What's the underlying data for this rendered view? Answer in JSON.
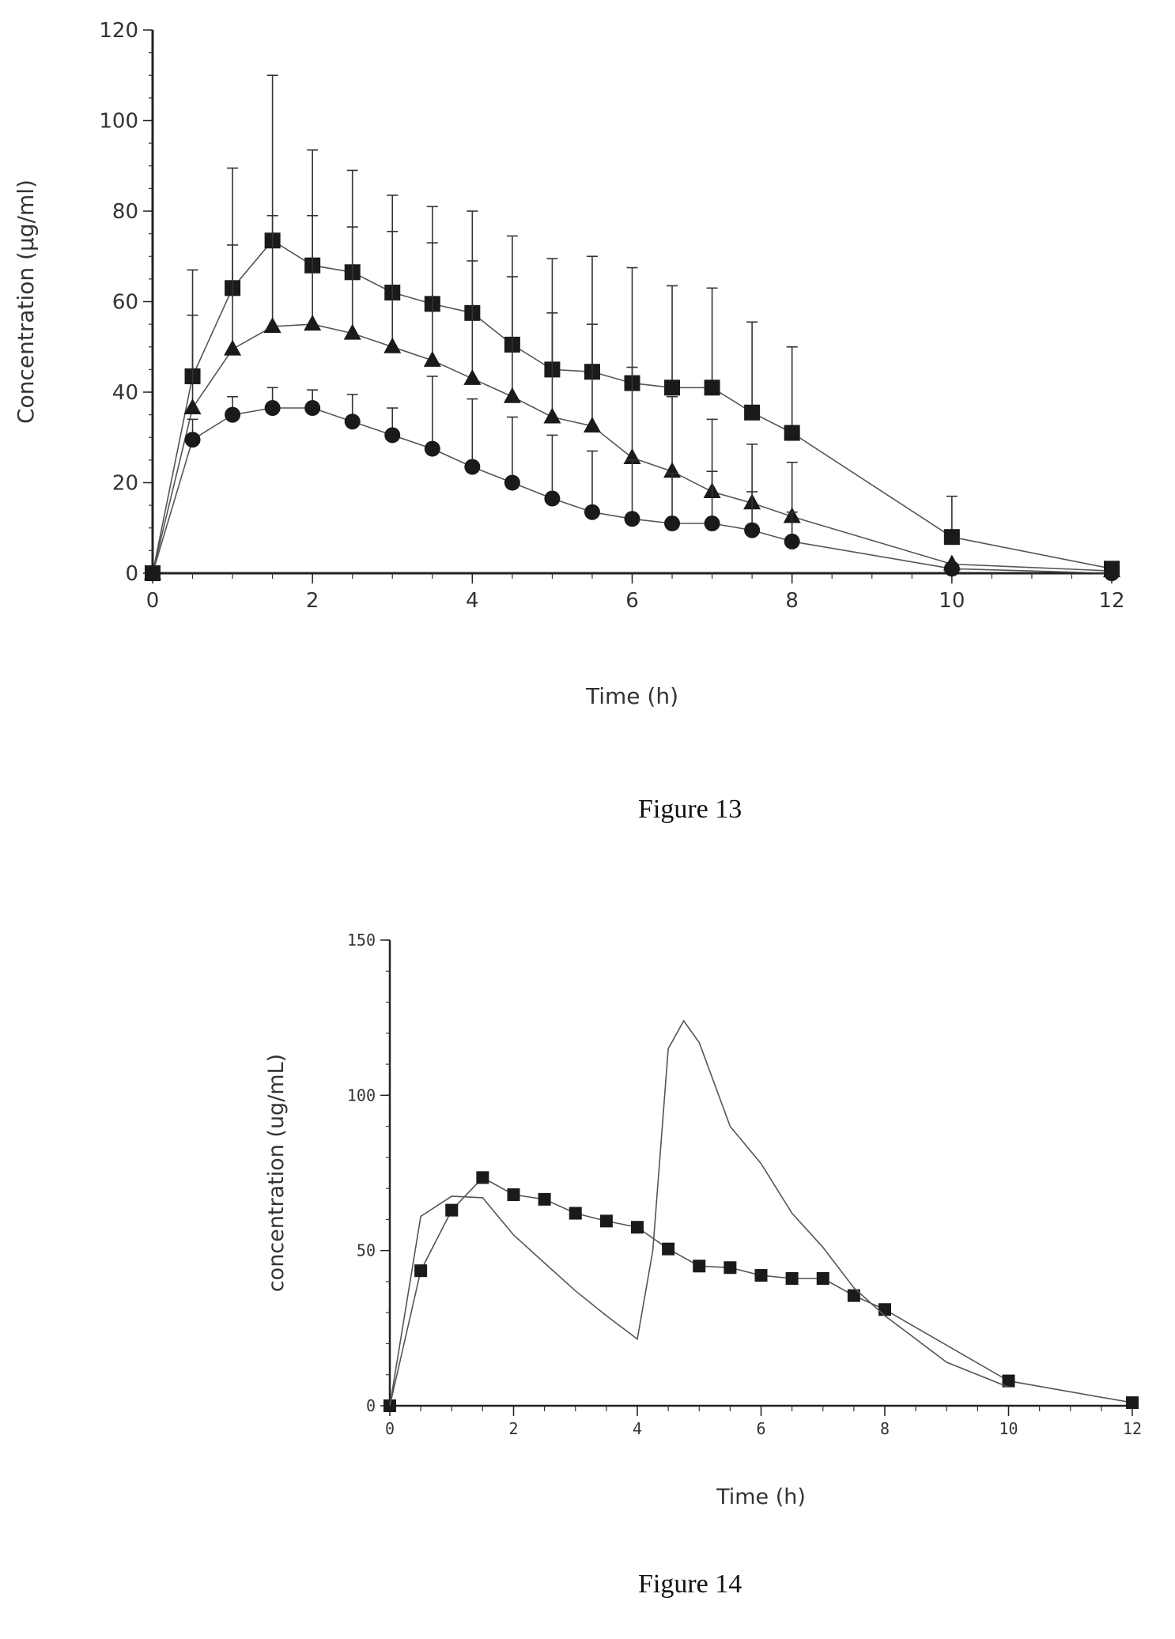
{
  "figures": [
    {
      "caption": "Figure 13"
    },
    {
      "caption": "Figure 14"
    }
  ],
  "chart_data": [
    {
      "type": "line",
      "title": "",
      "xlabel": "Time (h)",
      "ylabel": "Concentration (µg/ml)",
      "xlim": [
        0,
        12
      ],
      "ylim": [
        0,
        120
      ],
      "x_ticks": [
        "0",
        "2",
        "4",
        "6",
        "8",
        "10",
        "12"
      ],
      "y_ticks": [
        "0",
        "20",
        "40",
        "60",
        "80",
        "100",
        "120"
      ],
      "grid": false,
      "legend": "none",
      "error_bars": "upward (+SD)",
      "series": [
        {
          "marker": "square",
          "x": [
            0,
            0.5,
            1,
            1.5,
            2,
            2.5,
            3,
            3.5,
            4,
            4.5,
            5,
            5.5,
            6,
            6.5,
            7,
            7.5,
            8,
            10,
            12
          ],
          "values": [
            0,
            43.5,
            63,
            73.5,
            68,
            66.5,
            62,
            59.5,
            57.5,
            50.5,
            45,
            44.5,
            42,
            41,
            41,
            35.5,
            31,
            8,
            1
          ],
          "error_upper": [
            0,
            67,
            89.5,
            110,
            93.5,
            89,
            83.5,
            81,
            80,
            74.5,
            69.5,
            70,
            67.5,
            63.5,
            63,
            55.5,
            50,
            17,
            1
          ]
        },
        {
          "marker": "triangle",
          "x": [
            0,
            0.5,
            1,
            1.5,
            2,
            2.5,
            3,
            3.5,
            4,
            4.5,
            5,
            5.5,
            6,
            6.5,
            7,
            7.5,
            8,
            10,
            12
          ],
          "values": [
            0,
            36.5,
            49.5,
            54.5,
            55,
            53,
            50,
            47,
            43,
            39,
            34.5,
            32.5,
            25.5,
            22.5,
            18,
            15.5,
            12.5,
            2,
            0.5
          ],
          "error_upper": [
            0,
            57,
            72.5,
            79,
            79,
            76.5,
            75.5,
            73,
            69,
            65.5,
            57.5,
            55,
            45.5,
            39,
            34,
            28.5,
            24.5,
            2,
            0.5
          ]
        },
        {
          "marker": "circle",
          "x": [
            0,
            0.5,
            1,
            1.5,
            2,
            2.5,
            3,
            3.5,
            4,
            4.5,
            5,
            5.5,
            6,
            6.5,
            7,
            7.5,
            8,
            10,
            12
          ],
          "values": [
            0,
            29.5,
            35,
            36.5,
            36.5,
            33.5,
            30.5,
            27.5,
            23.5,
            20,
            16.5,
            13.5,
            12,
            11,
            11,
            9.5,
            7,
            1,
            0
          ],
          "error_upper": [
            0,
            34,
            39,
            41,
            40.5,
            39.5,
            36.5,
            43.5,
            38.5,
            34.5,
            30.5,
            27,
            25,
            22,
            22.5,
            18,
            13.5,
            1,
            0
          ]
        }
      ]
    },
    {
      "type": "line",
      "title": "",
      "xlabel": "Time (h)",
      "ylabel": "concentration (ug/mL)",
      "xlim": [
        0,
        12
      ],
      "ylim": [
        0,
        150
      ],
      "x_ticks": [
        "0",
        "2",
        "4",
        "6",
        "8",
        "10",
        "12"
      ],
      "y_ticks": [
        "0",
        "50",
        "100",
        "150"
      ],
      "grid": false,
      "legend": "none",
      "series": [
        {
          "marker": "square",
          "x": [
            0,
            0.5,
            1,
            1.5,
            2,
            2.5,
            3,
            3.5,
            4,
            4.5,
            5,
            5.5,
            6,
            6.5,
            7,
            7.5,
            8,
            10,
            12
          ],
          "values": [
            0,
            43.5,
            63,
            73.5,
            68,
            66.5,
            62,
            59.5,
            57.5,
            50.5,
            45,
            44.5,
            42,
            41,
            41,
            35.5,
            31,
            8,
            1
          ]
        },
        {
          "marker": "none",
          "x": [
            0,
            0.5,
            1,
            1.5,
            2,
            2.5,
            3,
            3.5,
            4,
            4.25,
            4.5,
            4.75,
            5,
            5.5,
            6,
            6.5,
            7,
            7.5,
            8,
            9,
            10
          ],
          "values": [
            0,
            61,
            67.5,
            67,
            55,
            46,
            37,
            29,
            21.5,
            50,
            115,
            124,
            117,
            90,
            78,
            62,
            51,
            38,
            29,
            14,
            6
          ]
        }
      ]
    }
  ]
}
